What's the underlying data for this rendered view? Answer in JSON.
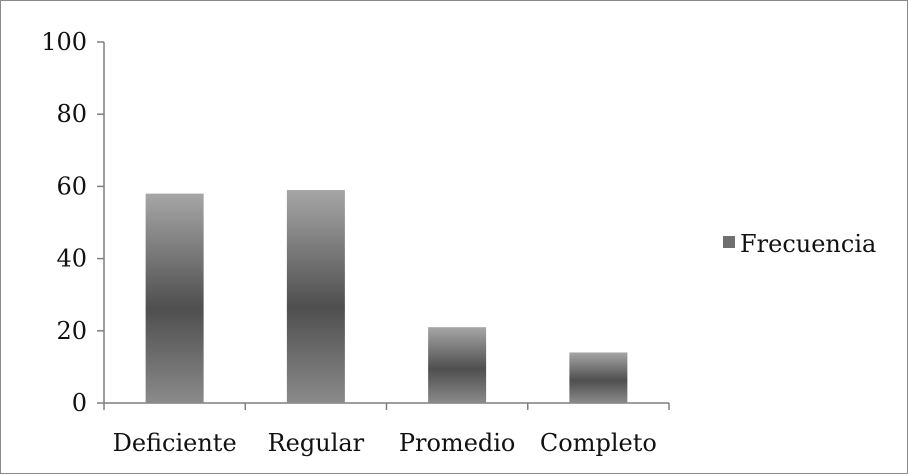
{
  "chart_data": {
    "type": "bar",
    "categories": [
      "Deficiente",
      "Regular",
      "Promedio",
      "Completo"
    ],
    "series": [
      {
        "name": "Frecuencia",
        "values": [
          58,
          59,
          21,
          14
        ],
        "color_top": "#a6a6a6",
        "color_mid": "#4f4f4f",
        "color_bottom": "#8a8a8a"
      }
    ],
    "title": "",
    "xlabel": "",
    "ylabel": "",
    "ylim": [
      0,
      100
    ],
    "yticks": [
      "0",
      "20",
      "40",
      "60",
      "80",
      "100"
    ],
    "grid": false,
    "legend_position": "right"
  },
  "legend": {
    "label": "Frecuencia",
    "swatch_color": "#6f6f6f"
  }
}
